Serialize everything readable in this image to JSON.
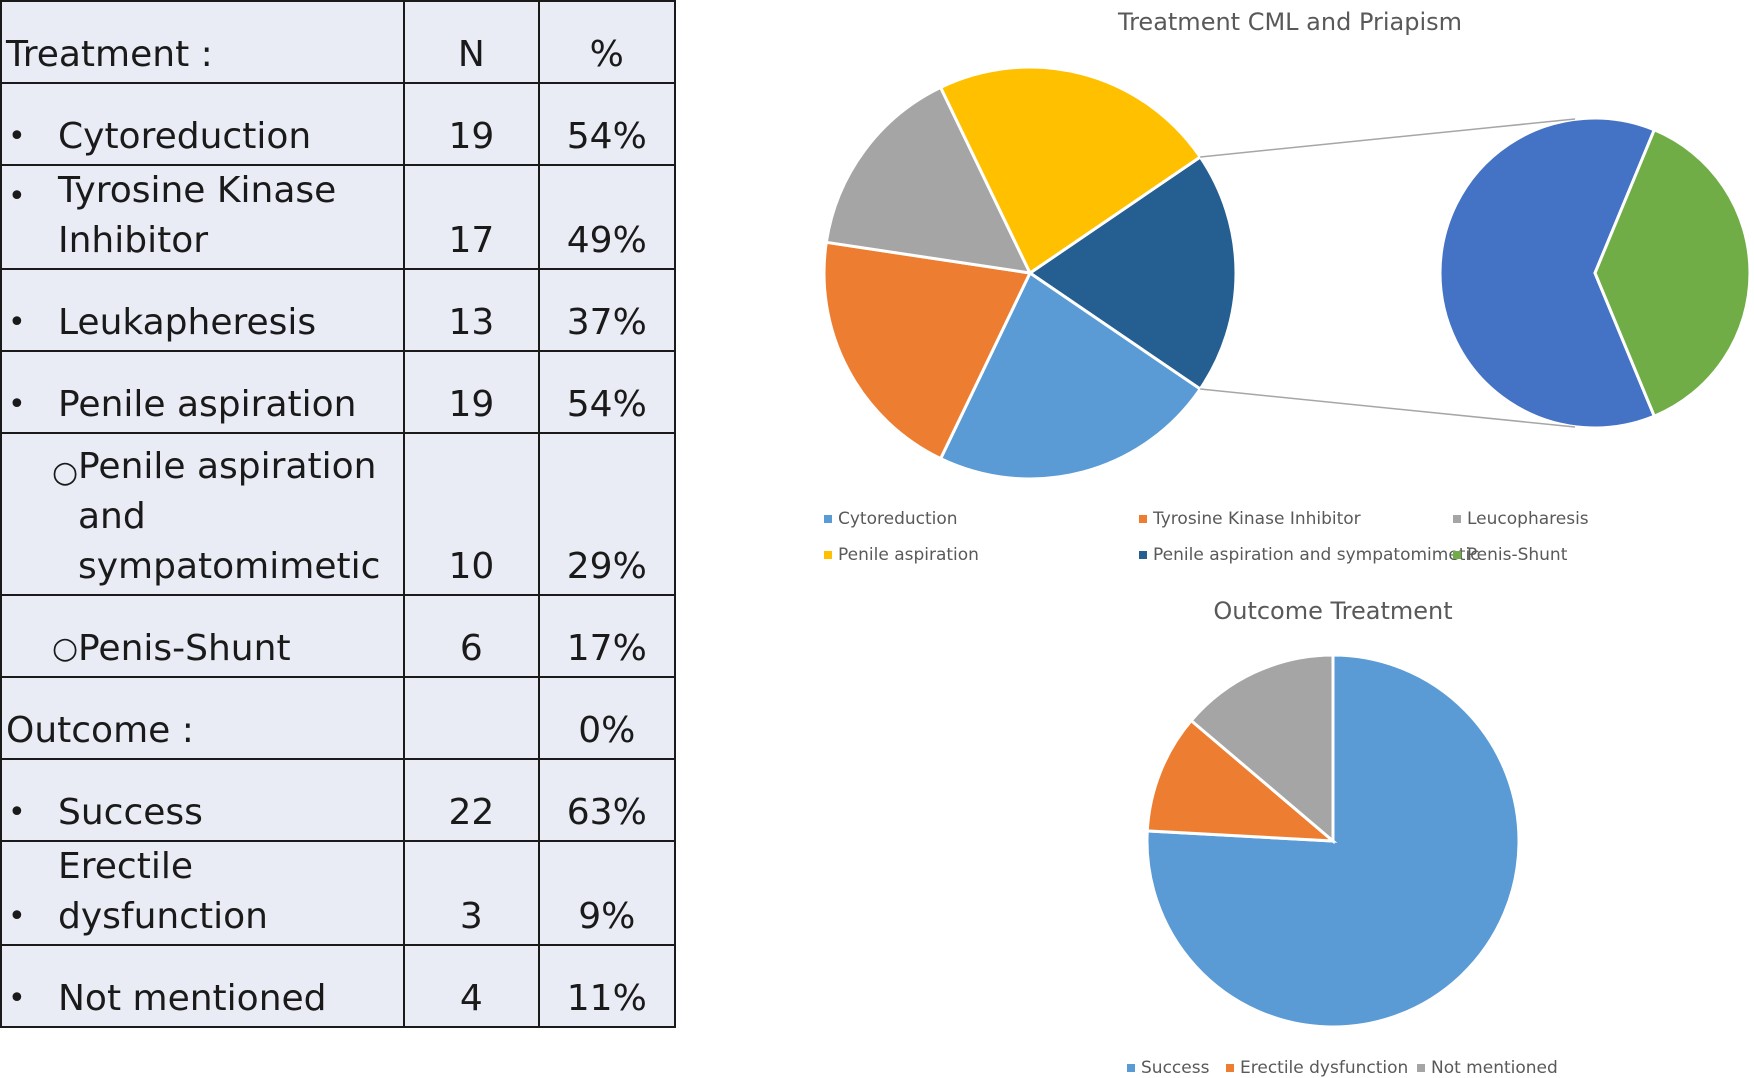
{
  "table": {
    "header": {
      "label": "Treatment :",
      "n": "N",
      "pct": "%"
    },
    "rows": [
      {
        "bullet": "•",
        "lines": [
          "Cytoreduction"
        ],
        "n": "19",
        "pct": "54%"
      },
      {
        "bullet": "•",
        "lines": [
          "Tyrosine Kinase",
          "Inhibitor"
        ],
        "n": "17",
        "pct": "49%"
      },
      {
        "bullet": "•",
        "lines": [
          "Leukapheresis"
        ],
        "n": "13",
        "pct": "37%"
      },
      {
        "bullet": "•",
        "lines": [
          "Penile aspiration"
        ],
        "n": "19",
        "pct": "54%"
      },
      {
        "bullet": "○",
        "lines": [
          "Penile aspiration",
          "and",
          "sympatomimetic"
        ],
        "n": "10",
        "pct": "29%",
        "sub": true
      },
      {
        "bullet": "○",
        "lines": [
          "Penis-Shunt"
        ],
        "n": "6",
        "pct": "17%",
        "sub": true
      },
      {
        "section": "Outcome :",
        "n": "",
        "pct": "0%"
      },
      {
        "bullet": "•",
        "lines": [
          "Success"
        ],
        "n": "22",
        "pct": "63%"
      },
      {
        "bullet": "•",
        "lines": [
          "Erectile dysfunction"
        ],
        "n": "3",
        "pct": "9%"
      },
      {
        "bullet": "•",
        "lines": [
          "Not mentioned"
        ],
        "n": "4",
        "pct": "11%"
      }
    ]
  },
  "chart_data": [
    {
      "type": "pie",
      "subtype": "pie-of-pie",
      "title": "Treatment CML and Priapism",
      "categories": [
        "Cytoreduction",
        "Tyrosine Kinase Inhibitor",
        "Leucopharesis",
        "Penile aspiration",
        "Penile aspiration and sympatomimetic",
        "Penis-Shunt"
      ],
      "values": [
        19,
        17,
        13,
        19,
        10,
        6
      ],
      "secondary_pie_categories": [
        "Penile aspiration and sympatomimetic",
        "Penis-Shunt"
      ],
      "colors": [
        "#5B9BD5",
        "#ED7D31",
        "#A5A5A5",
        "#FFC000",
        "#255E91",
        "#70AD47"
      ],
      "secondary_colors": [
        "#4472C4",
        "#70AD47"
      ],
      "legend": "bottom"
    },
    {
      "type": "pie",
      "title": "Outcome Treatment",
      "categories": [
        "Success",
        "Erectile dysfunction",
        "Not mentioned"
      ],
      "values": [
        22,
        3,
        4
      ],
      "colors": [
        "#5B9BD5",
        "#ED7D31",
        "#A5A5A5"
      ],
      "legend": "bottom"
    }
  ],
  "legend_bullet": "■"
}
